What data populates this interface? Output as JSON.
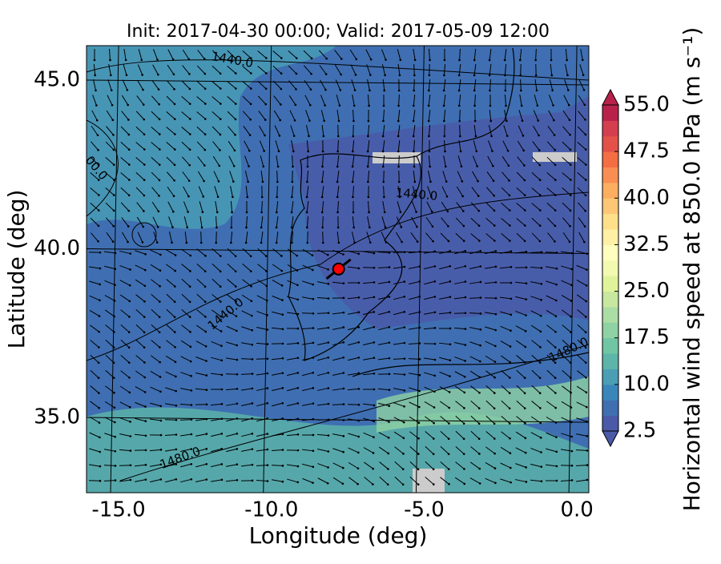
{
  "chart_data": {
    "type": "map",
    "title": "Init: 2017-04-30 00:00; Valid: 2017-05-09 12:00",
    "x_label": "Longitude (deg)",
    "y_label": "Latitude (deg)",
    "xlim": [
      -16.05,
      0.39
    ],
    "ylim": [
      32.77,
      46.02
    ],
    "xticks": [
      {
        "value": -15,
        "label": "-15.0"
      },
      {
        "value": -10,
        "label": "-10.0"
      },
      {
        "value": -5,
        "label": "-5.0"
      },
      {
        "value": 0,
        "label": "0.0"
      }
    ],
    "yticks": [
      {
        "value": 35,
        "label": "35.0"
      },
      {
        "value": 40,
        "label": "40.0"
      },
      {
        "value": 45,
        "label": "45.0"
      }
    ],
    "grid": true,
    "annotations": [
      "1440.0",
      "1440.0",
      "1440.0",
      "00.0",
      "1480.0",
      "1480.0"
    ],
    "marker": {
      "lon": -7.8,
      "lat": 39.4,
      "color": "#ff0000"
    },
    "colorbar": {
      "label": "Horizontal wind speed at 850.0 hPa (m s⁻¹)",
      "lim": [
        2.5,
        55
      ],
      "ticks": [
        {
          "value": 2.5,
          "label": "2.5"
        },
        {
          "value": 10,
          "label": "10.0"
        },
        {
          "value": 17.5,
          "label": "17.5"
        },
        {
          "value": 25,
          "label": "25.0"
        },
        {
          "value": 32.5,
          "label": "32.5"
        },
        {
          "value": 40,
          "label": "40.0"
        },
        {
          "value": 47.5,
          "label": "47.5"
        },
        {
          "value": 55,
          "label": "55.0"
        }
      ],
      "colors": [
        "#4a5aa8",
        "#3f6fb2",
        "#3a86bb",
        "#4a9fb5",
        "#5cb5a8",
        "#70c5a4",
        "#8fd2a3",
        "#abdda4",
        "#c7e89e",
        "#e1f39a",
        "#f2f9b1",
        "#fffebe",
        "#fff0a5",
        "#fee08b",
        "#fdc776",
        "#fdae61",
        "#f98e52",
        "#f46d43",
        "#e45149",
        "#d53e4f",
        "#b8224a"
      ]
    }
  }
}
